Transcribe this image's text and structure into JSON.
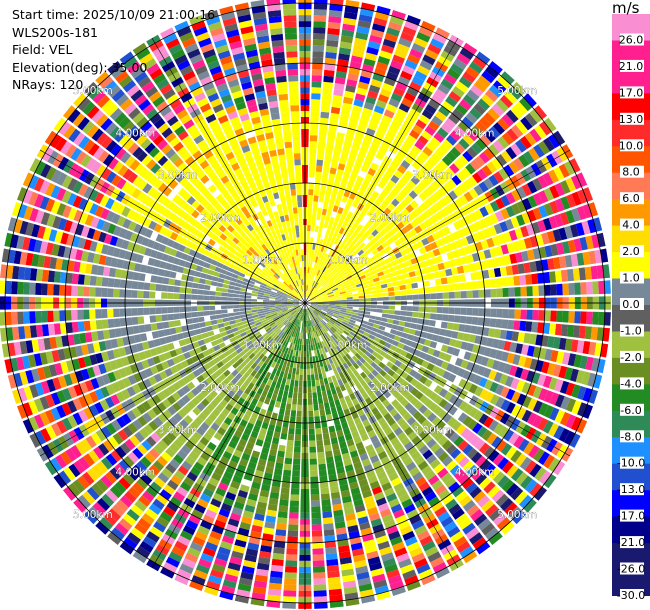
{
  "header": {
    "start_time": "Start time: 2025/10/09 21:00:16",
    "instrument": "WLS200s-181",
    "field": "Field: VEL",
    "elevation": "Elevation(deg): 35.00",
    "nrays": "NRays: 120"
  },
  "chart_data": {
    "type": "heatmap",
    "subtype": "polar-ppi",
    "field": "VEL",
    "units": "m/s",
    "nrays": 120,
    "elevation_deg": 35.0,
    "range_rings_km": [
      1.0,
      2.0,
      3.0,
      4.0,
      5.0
    ],
    "ring_labels": [
      "1.00km",
      "2.00km",
      "3.00km",
      "4.00km",
      "5.00km"
    ],
    "max_range_km": 5.1,
    "colorbar": {
      "ticks": [
        "26.0",
        "21.0",
        "17.0",
        "13.0",
        "10.0",
        "8.0",
        "6.0",
        "4.0",
        "2.0",
        "1.0",
        "0.0",
        "-1.0",
        "-2.0",
        "-4.0",
        "-6.0",
        "-8.0",
        "-10.0",
        "-13.0",
        "-17.0",
        "-21.0",
        "-26.0",
        "-30.0"
      ],
      "colors": [
        "#fa8ed2",
        "#ff1f8e",
        "#ff1f8e",
        "#ff0000",
        "#ff2b2b",
        "#ff5500",
        "#ff7a55",
        "#ff9900",
        "#ffdd00",
        "#ffff00",
        "#778899",
        "#606060",
        "#a0c040",
        "#6b8e23",
        "#228b22",
        "#2e8b57",
        "#1e90ff",
        "#2050d0",
        "#0000ff",
        "#00008b",
        "#191970"
      ]
    },
    "colors": {
      "yellow": "#ffff00",
      "grey": "#778899",
      "green_light": "#a0c040",
      "green_olive": "#6b8e23",
      "green": "#228b22",
      "orange": "#ff9900",
      "red": "#ff0000"
    }
  }
}
